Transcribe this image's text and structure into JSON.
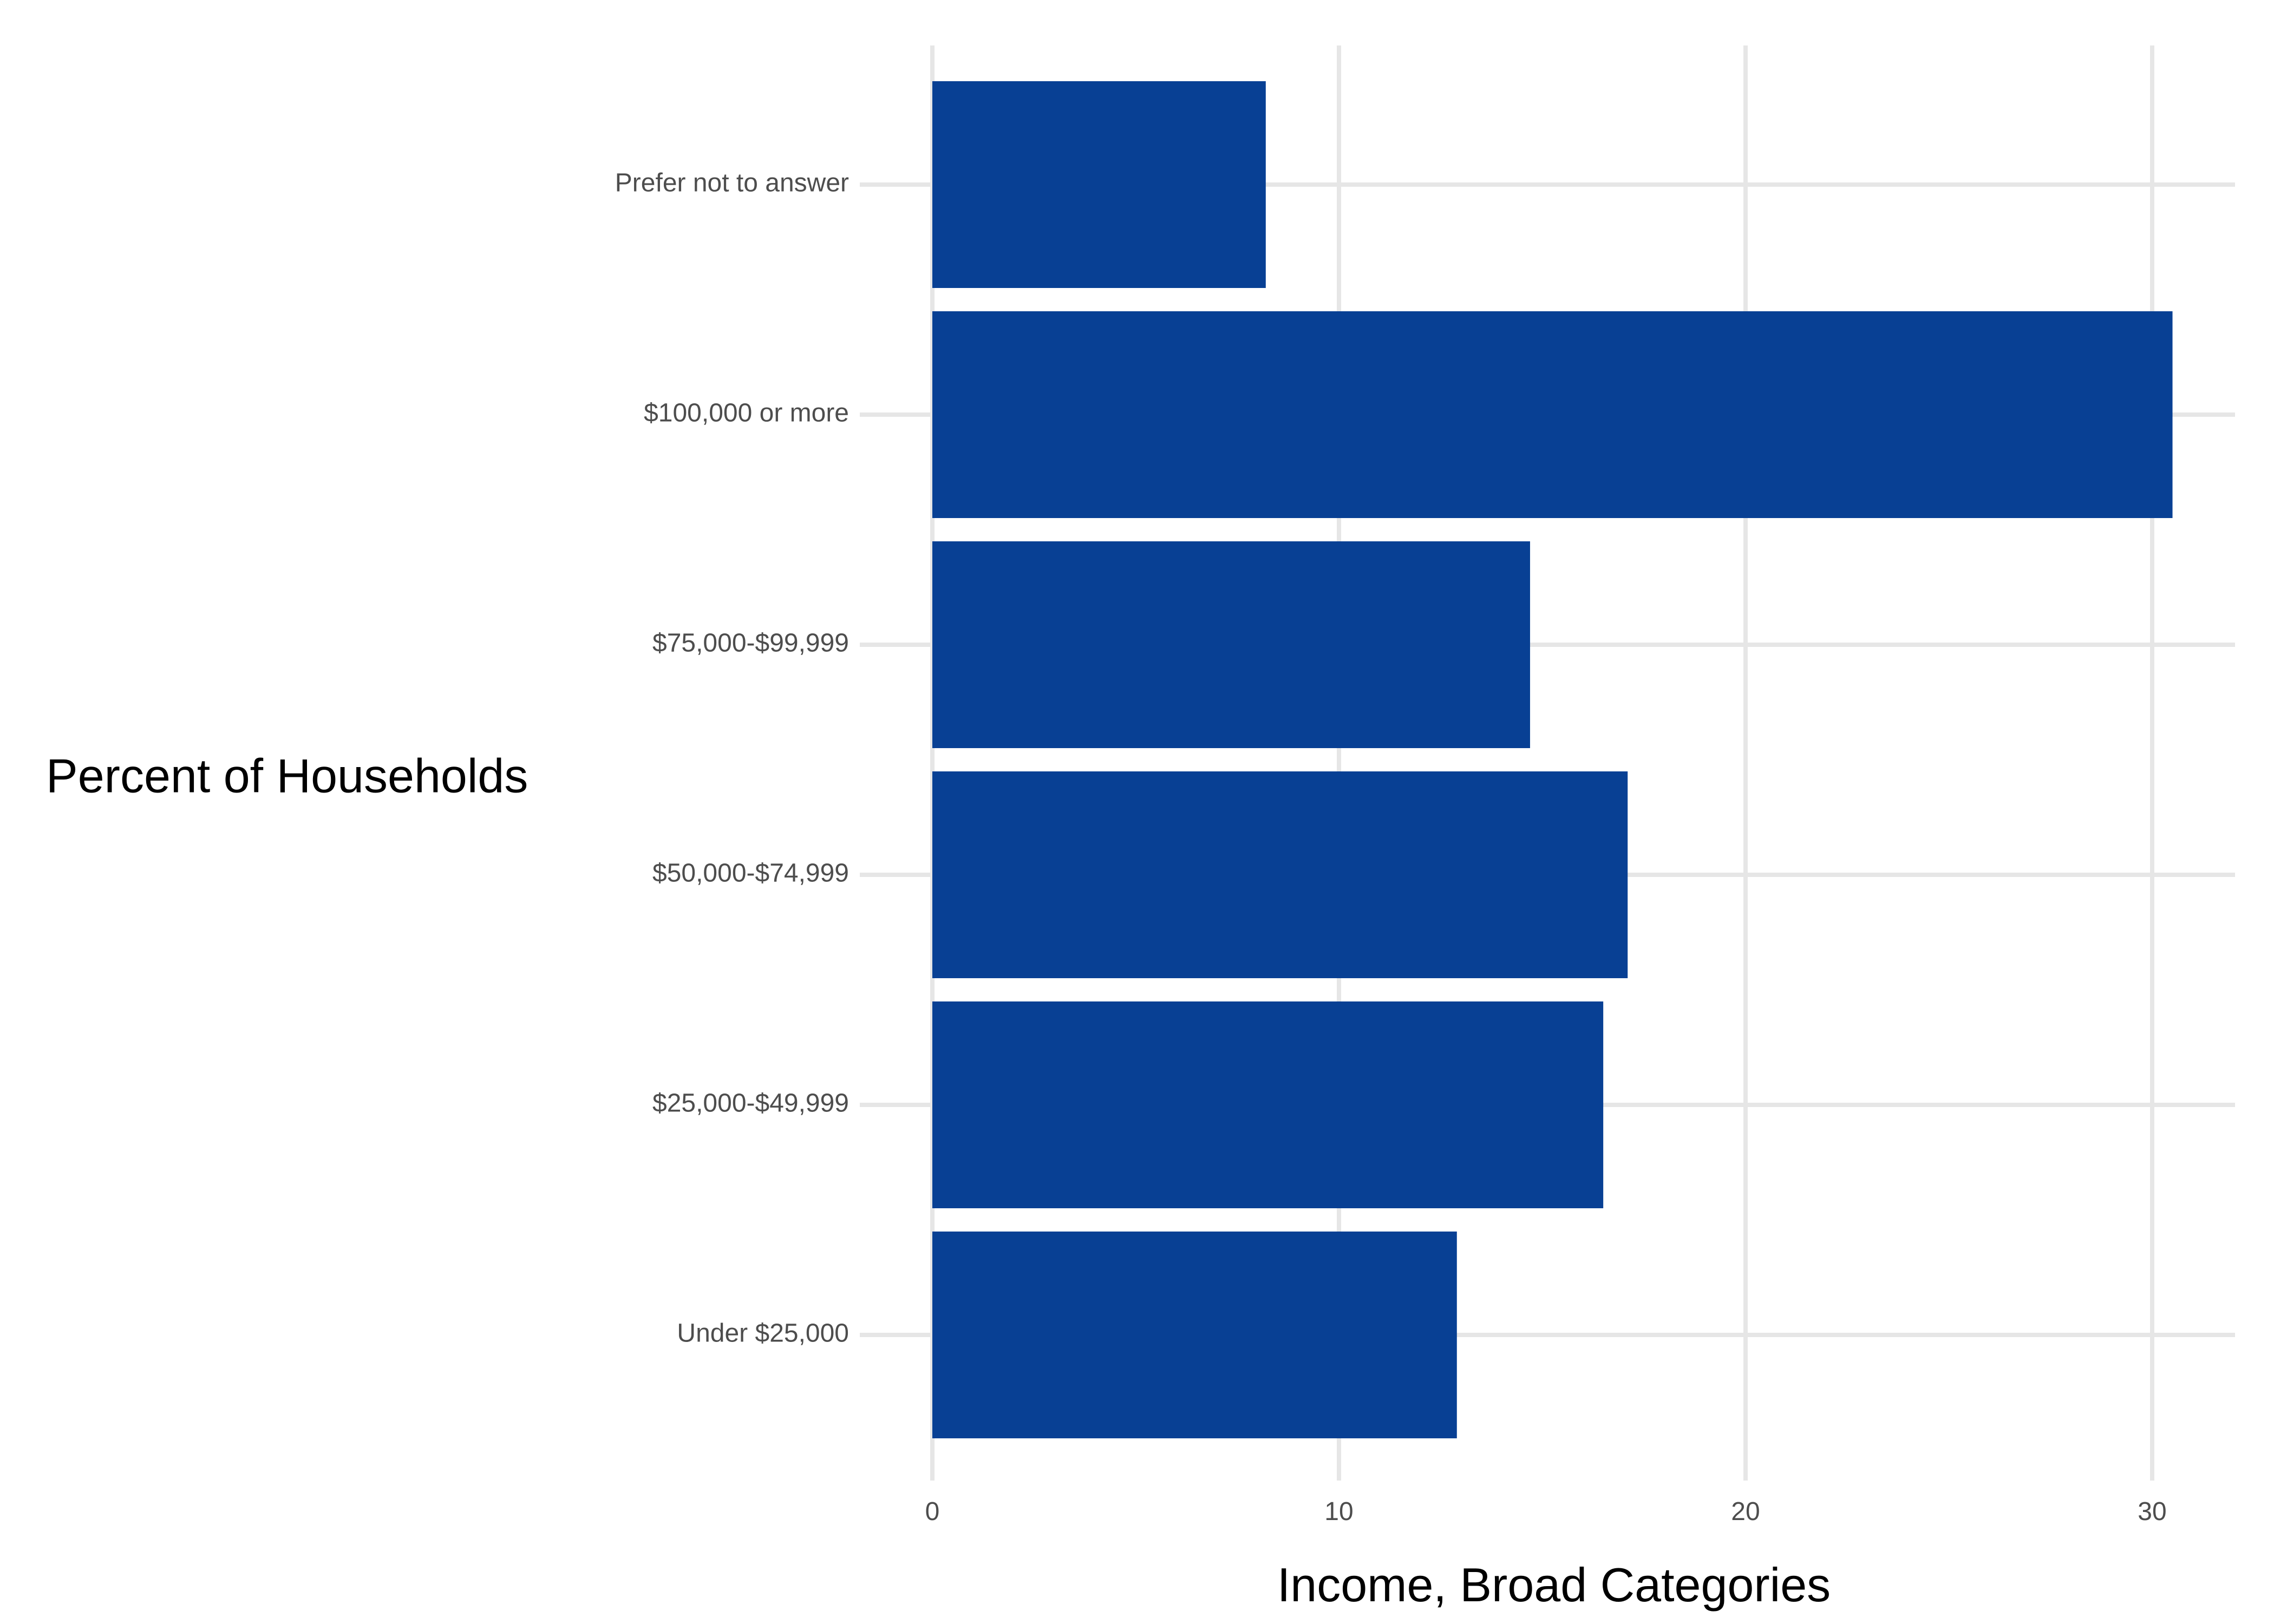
{
  "chart_data": {
    "type": "bar",
    "orientation": "horizontal",
    "categories": [
      "Under $25,000",
      "$25,000-$49,999",
      "$50,000-$74,999",
      "$75,000-$99,999",
      "$100,000 or more",
      "Prefer not to answer"
    ],
    "values": [
      12.9,
      16.5,
      17.1,
      14.7,
      30.5,
      8.2
    ],
    "xlim": [
      0,
      32
    ],
    "xticks": [
      0,
      10,
      20,
      30
    ],
    "xlabel": "Income, Broad Categories",
    "ylabel": "Percent of Households",
    "grid": true,
    "legend": "none",
    "colors": {
      "bar": "#084094",
      "grid": "#e6e6e6",
      "tick_text": "#4d4d4d",
      "title_text": "#000000"
    }
  }
}
